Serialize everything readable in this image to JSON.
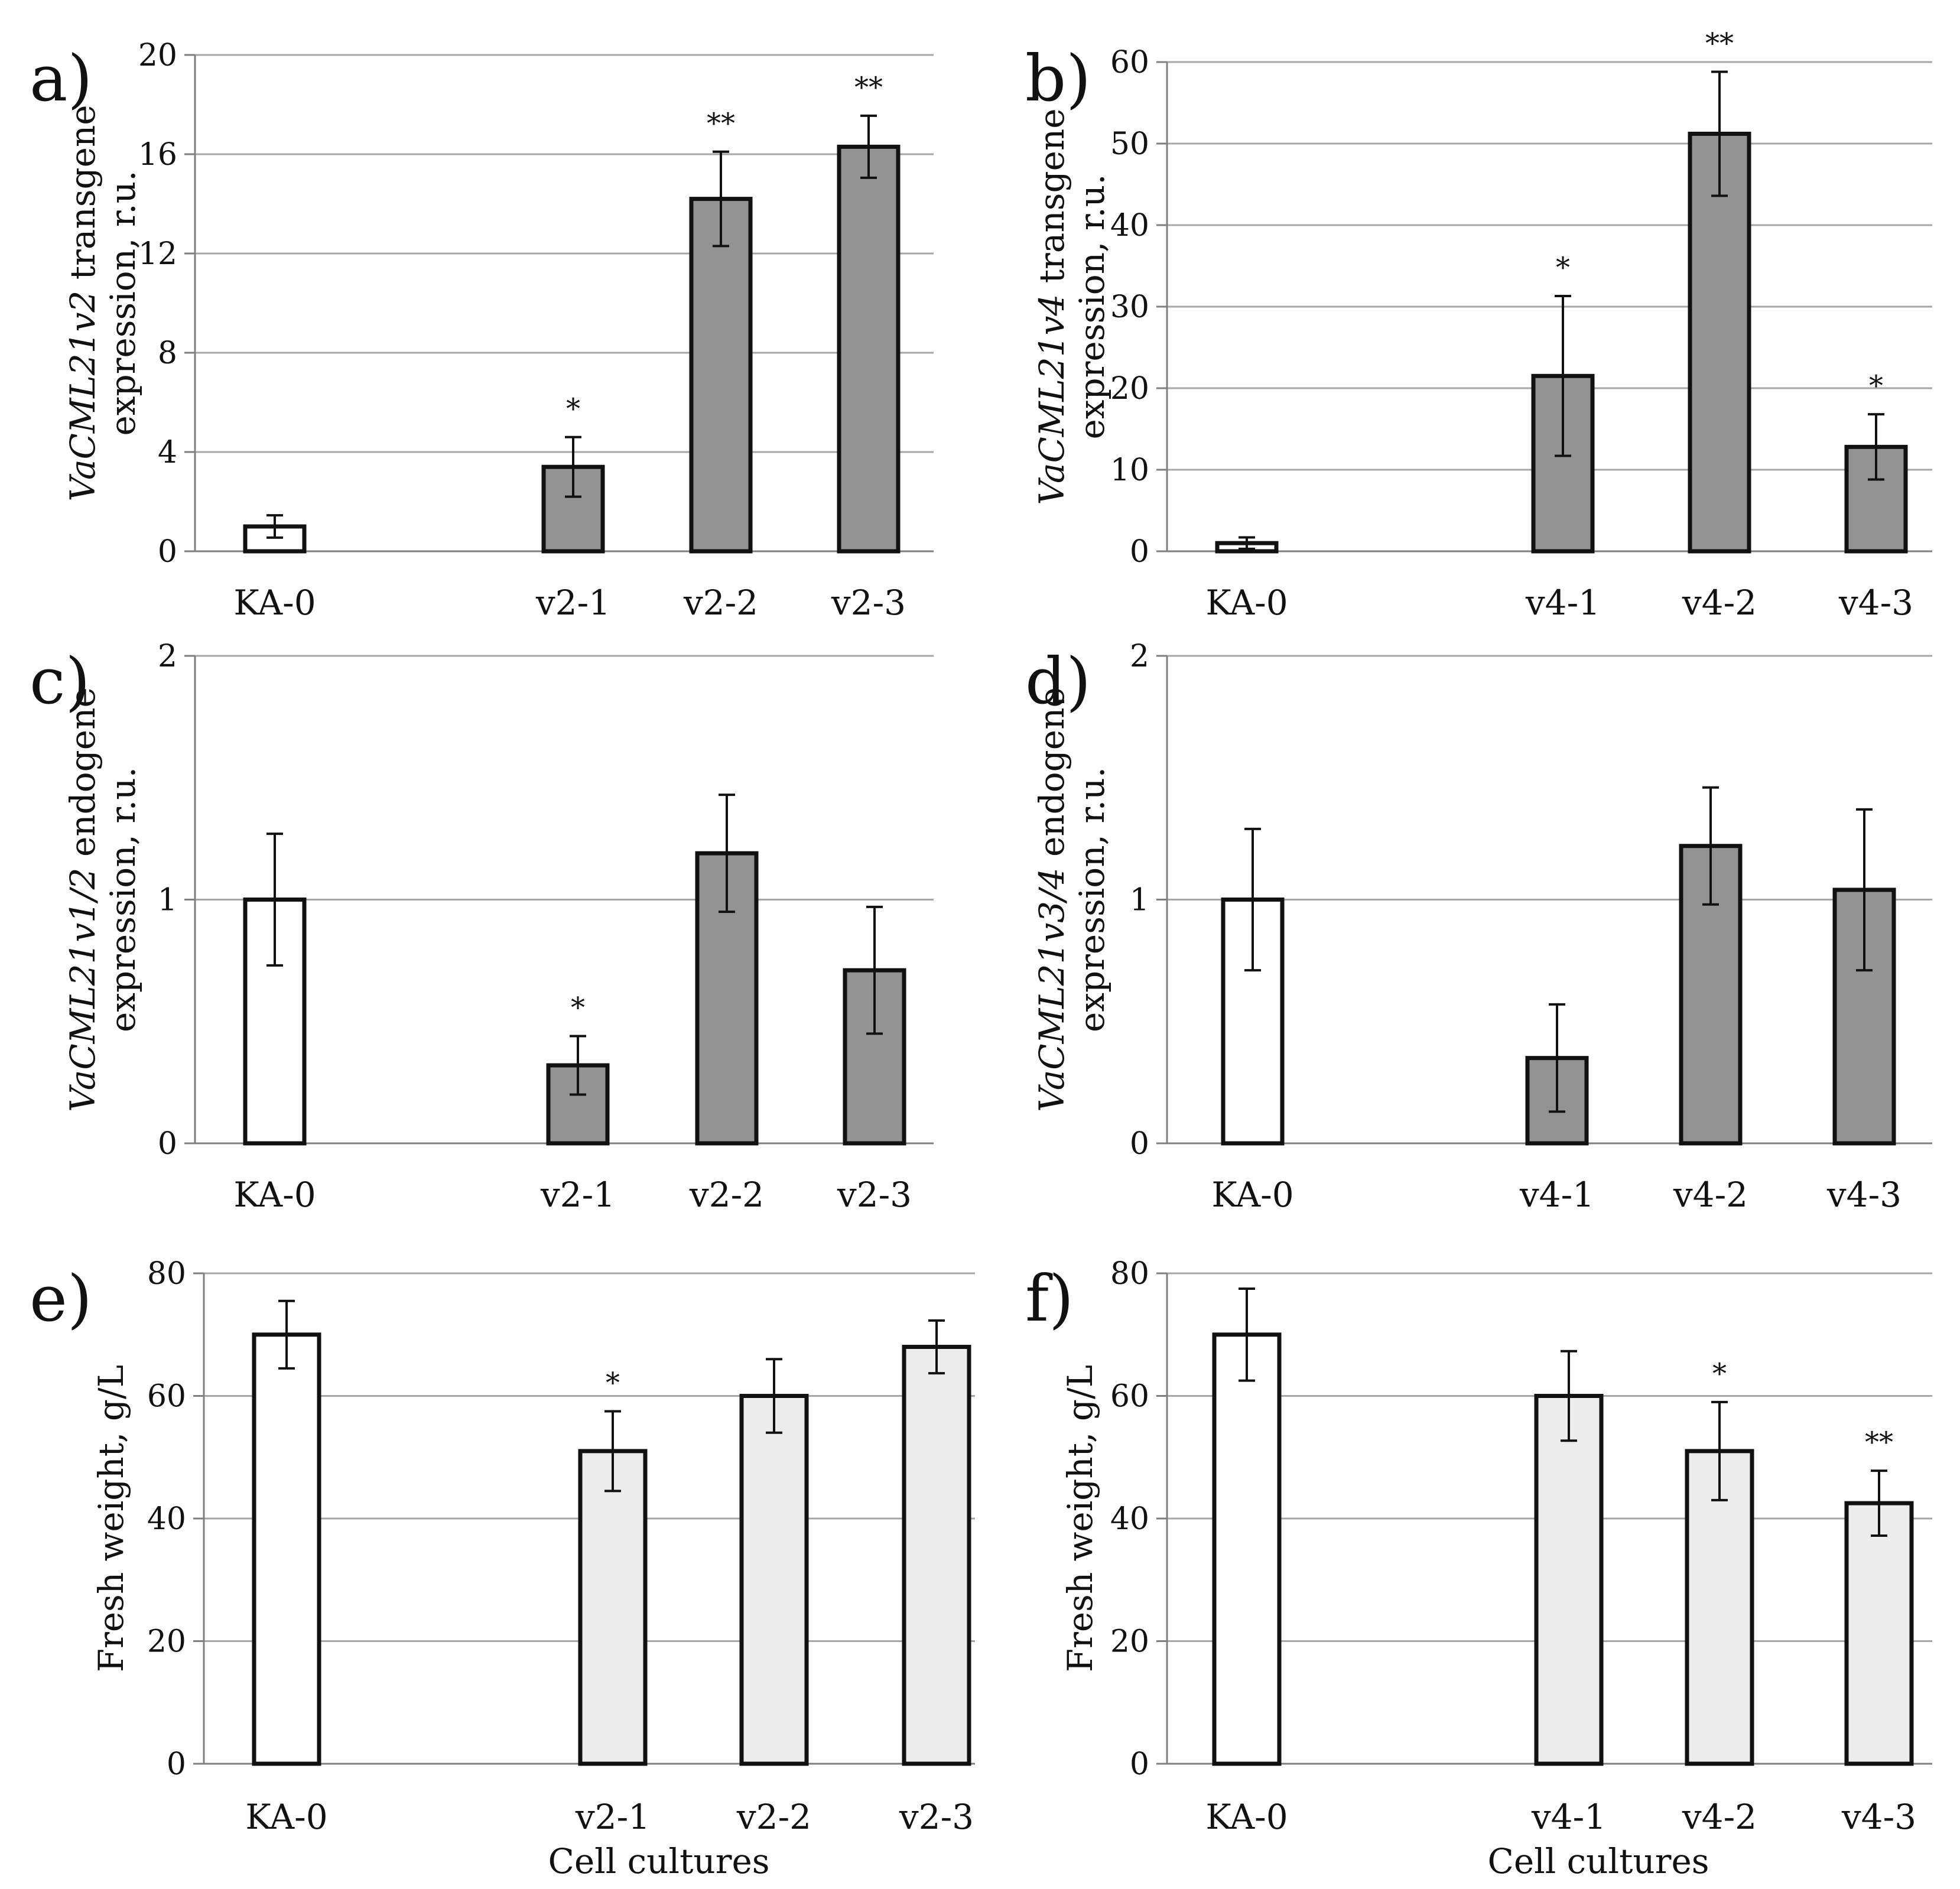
{
  "figure": {
    "colors": {
      "control": "#ffffff",
      "expression": "#939393",
      "weight": "#ececec",
      "stroke": "#111111",
      "grid": "#a6a6a6"
    }
  },
  "chart_data": [
    {
      "panel": "a)",
      "type": "bar",
      "categories": [
        "KA-0",
        "v2-1",
        "v2-2",
        "v2-3"
      ],
      "values": [
        1.0,
        3.4,
        14.2,
        16.3
      ],
      "errors": [
        0.45,
        1.2,
        1.9,
        1.25
      ],
      "significance": [
        "",
        "*",
        "**",
        "**"
      ],
      "ylabel_italic": "VaCML21v2",
      "ylabel_rest": " transgene",
      "ylabel_line2": "expression, r.u.",
      "xlabel": "",
      "ylim": [
        0,
        20
      ],
      "yticks": [
        "0",
        "4",
        "8",
        "12",
        "16",
        "20"
      ],
      "ytick_values": [
        0,
        4,
        8,
        12,
        16,
        20
      ],
      "grid": true,
      "style": "expression"
    },
    {
      "panel": "b)",
      "type": "bar",
      "categories": [
        "KA-0",
        "v4-1",
        "v4-2",
        "v4-3"
      ],
      "values": [
        1.0,
        21.5,
        51.2,
        12.8
      ],
      "errors": [
        0.7,
        9.8,
        7.6,
        4.0
      ],
      "significance": [
        "",
        "*",
        "**",
        "*"
      ],
      "ylabel_italic": "VaCML21v4",
      "ylabel_rest": " transgene",
      "ylabel_line2": "expression, r.u.",
      "xlabel": "",
      "ylim": [
        0,
        60
      ],
      "yticks": [
        "0",
        "10",
        "20",
        "30",
        "40",
        "50",
        "60"
      ],
      "ytick_values": [
        0,
        10,
        20,
        30,
        40,
        50,
        60
      ],
      "grid": true,
      "style": "expression"
    },
    {
      "panel": "c)",
      "type": "bar",
      "categories": [
        "KA-0",
        "v2-1",
        "v2-2",
        "v2-3"
      ],
      "values": [
        1.0,
        0.32,
        1.19,
        0.71
      ],
      "errors": [
        0.27,
        0.12,
        0.24,
        0.26
      ],
      "significance": [
        "",
        "*",
        "",
        ""
      ],
      "ylabel_italic": "VaCML21v1/2",
      "ylabel_rest": " endogene",
      "ylabel_line2": "expression, r.u.",
      "xlabel": "",
      "ylim": [
        0,
        2
      ],
      "yticks": [
        "0",
        "1",
        "2"
      ],
      "ytick_values": [
        0,
        1,
        2
      ],
      "grid": true,
      "style": "expression"
    },
    {
      "panel": "d)",
      "type": "bar",
      "categories": [
        "KA-0",
        "v4-1",
        "v4-2",
        "v4-3"
      ],
      "values": [
        1.0,
        0.35,
        1.22,
        1.04
      ],
      "errors": [
        0.29,
        0.22,
        0.24,
        0.33
      ],
      "significance": [
        "",
        "",
        "",
        ""
      ],
      "ylabel_italic": "VaCML21v3/4",
      "ylabel_rest": " endogene",
      "ylabel_line2": "expression, r.u.",
      "xlabel": "",
      "ylim": [
        0,
        2
      ],
      "yticks": [
        "0",
        "1",
        "2"
      ],
      "ytick_values": [
        0,
        1,
        2
      ],
      "grid": true,
      "style": "expression"
    },
    {
      "panel": "e)",
      "type": "bar",
      "categories": [
        "KA-0",
        "v2-1",
        "v2-2",
        "v2-3"
      ],
      "values": [
        70,
        51,
        60,
        68
      ],
      "errors": [
        5.5,
        6.5,
        6.0,
        4.3
      ],
      "significance": [
        "",
        "*",
        "",
        ""
      ],
      "ylabel_italic": "",
      "ylabel_rest": "Fresh weight, g/L",
      "ylabel_line2": "",
      "xlabel": "Cell cultures",
      "ylim": [
        0,
        80
      ],
      "yticks": [
        "0",
        "20",
        "40",
        "60",
        "80"
      ],
      "ytick_values": [
        0,
        20,
        40,
        60,
        80
      ],
      "grid": true,
      "style": "weight"
    },
    {
      "panel": "f)",
      "type": "bar",
      "categories": [
        "KA-0",
        "v4-1",
        "v4-2",
        "v4-3"
      ],
      "values": [
        70,
        60,
        51,
        42.5
      ],
      "errors": [
        7.5,
        7.3,
        8.0,
        5.3
      ],
      "significance": [
        "",
        "",
        "*",
        "**"
      ],
      "ylabel_italic": "",
      "ylabel_rest": "Fresh weight, g/L",
      "ylabel_line2": "",
      "xlabel": "Cell cultures",
      "ylim": [
        0,
        80
      ],
      "yticks": [
        "0",
        "20",
        "40",
        "60",
        "80"
      ],
      "ytick_values": [
        0,
        20,
        40,
        60,
        80
      ],
      "grid": true,
      "style": "weight"
    }
  ]
}
